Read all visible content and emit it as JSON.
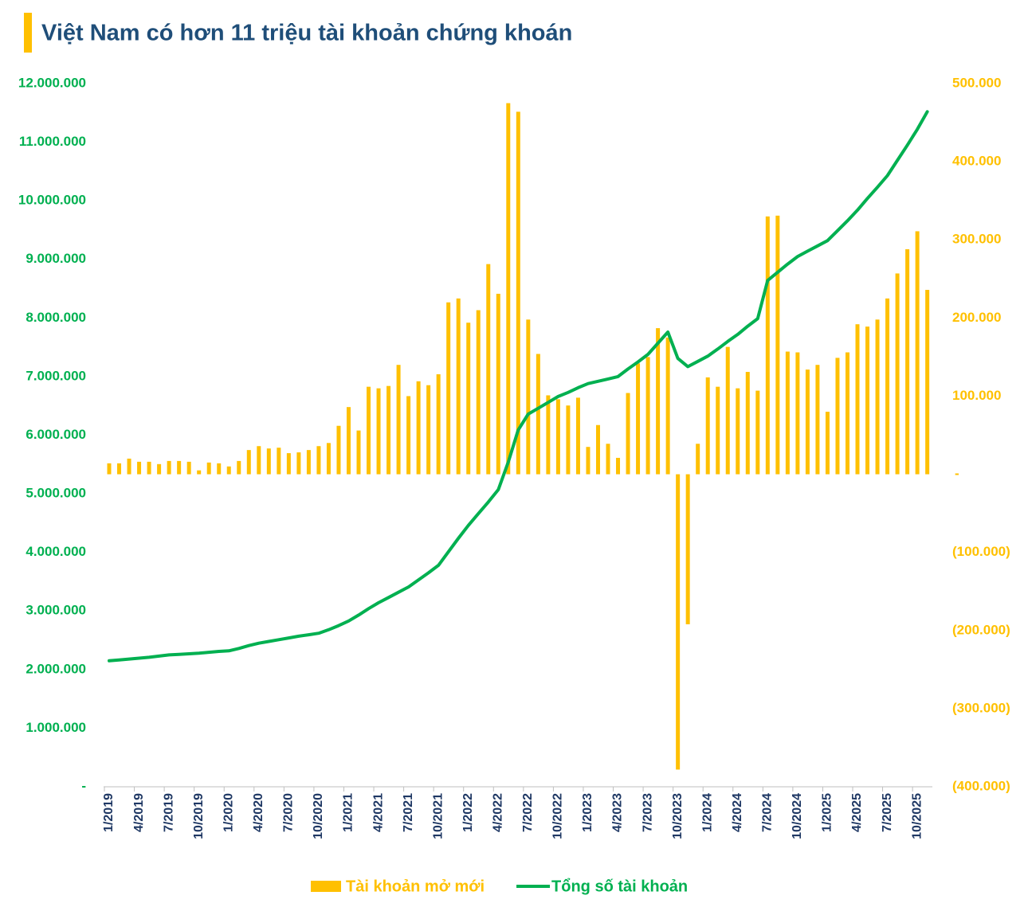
{
  "chart_data": {
    "type": "bar-line",
    "title": "Việt Nam có hơn 11 triệu tài khoản chứng khoán",
    "categories": [
      "1/2019",
      null,
      null,
      "4/2019",
      null,
      null,
      "7/2019",
      null,
      null,
      "10/2019",
      null,
      null,
      "1/2020",
      null,
      null,
      "4/2020",
      null,
      null,
      "7/2020",
      null,
      null,
      "10/2020",
      null,
      null,
      "1/2021",
      null,
      null,
      "4/2021",
      null,
      null,
      "7/2021",
      null,
      null,
      "10/2021",
      null,
      null,
      "1/2022",
      null,
      null,
      "4/2022",
      null,
      null,
      "7/2022",
      null,
      null,
      "10/2022",
      null,
      null,
      "1/2023",
      null,
      null,
      "4/2023",
      null,
      null,
      "7/2023",
      null,
      null,
      "10/2023",
      null,
      null,
      "1/2024",
      null,
      null,
      "4/2024",
      null,
      null,
      "7/2024",
      null,
      null,
      "10/2024",
      null,
      null,
      "1/2025",
      null,
      null,
      "4/2025",
      null,
      null,
      "7/2025",
      null,
      null,
      "10/2025",
      null
    ],
    "series": [
      {
        "name": "Tài khoản mở mới",
        "type": "bar",
        "axis": "y2",
        "color": "#ffc000",
        "values": [
          14000,
          14000,
          20000,
          16000,
          16000,
          13000,
          17000,
          17000,
          16000,
          5000,
          15000,
          14000,
          10000,
          17000,
          31000,
          36000,
          33000,
          34000,
          27000,
          28000,
          31000,
          36000,
          40000,
          62000,
          86000,
          56000,
          112000,
          110000,
          113000,
          140000,
          100000,
          119000,
          114000,
          128000,
          220000,
          225000,
          194000,
          210000,
          269000,
          231000,
          475000,
          464000,
          198000,
          154000,
          101000,
          96000,
          88000,
          98000,
          35000,
          63000,
          39000,
          21000,
          104000,
          142000,
          150000,
          187000,
          175000,
          -378000,
          -192000,
          39000,
          124000,
          112000,
          163000,
          110000,
          131000,
          107000,
          330000,
          331000,
          157000,
          156000,
          134000,
          140000,
          80000,
          149000,
          156000,
          192000,
          189000,
          198000,
          225000,
          257000,
          288000,
          311000,
          236000
        ]
      },
      {
        "name": "Tổng số tài khoản",
        "type": "line",
        "axis": "y",
        "color": "#00b050",
        "values": [
          2150000,
          2165000,
          2180000,
          2195000,
          2210000,
          2230000,
          2250000,
          2260000,
          2270000,
          2280000,
          2295000,
          2310000,
          2320000,
          2360000,
          2410000,
          2450000,
          2480000,
          2510000,
          2540000,
          2570000,
          2595000,
          2620000,
          2680000,
          2750000,
          2830000,
          2930000,
          3040000,
          3140000,
          3230000,
          3320000,
          3410000,
          3530000,
          3650000,
          3780000,
          4010000,
          4240000,
          4460000,
          4660000,
          4860000,
          5070000,
          5540000,
          6090000,
          6360000,
          6460000,
          6560000,
          6660000,
          6730000,
          6810000,
          6880000,
          6920000,
          6960000,
          7000000,
          7130000,
          7250000,
          7380000,
          7570000,
          7760000,
          7310000,
          7170000,
          7260000,
          7350000,
          7470000,
          7600000,
          7720000,
          7860000,
          7990000,
          8640000,
          8780000,
          8920000,
          9050000,
          9140000,
          9230000,
          9320000,
          9490000,
          9660000,
          9840000,
          10040000,
          10230000,
          10430000,
          10690000,
          10950000,
          11220000,
          11520000
        ]
      }
    ],
    "ylim": [
      0,
      12000000
    ],
    "yticks": [
      {
        "value": 0,
        "label": "-"
      },
      {
        "value": 1000000,
        "label": "1.000.000"
      },
      {
        "value": 2000000,
        "label": "2.000.000"
      },
      {
        "value": 3000000,
        "label": "3.000.000"
      },
      {
        "value": 4000000,
        "label": "4.000.000"
      },
      {
        "value": 5000000,
        "label": "5.000.000"
      },
      {
        "value": 6000000,
        "label": "6.000.000"
      },
      {
        "value": 7000000,
        "label": "7.000.000"
      },
      {
        "value": 8000000,
        "label": "8.000.000"
      },
      {
        "value": 9000000,
        "label": "9.000.000"
      },
      {
        "value": 10000000,
        "label": "10.000.000"
      },
      {
        "value": 11000000,
        "label": "11.000.000"
      },
      {
        "value": 12000000,
        "label": "12.000.000"
      }
    ],
    "y2lim": [
      -400000,
      500000
    ],
    "y2ticks": [
      {
        "value": -400000,
        "label": "(400.000)"
      },
      {
        "value": -300000,
        "label": "(300.000)"
      },
      {
        "value": -200000,
        "label": "(200.000)"
      },
      {
        "value": -100000,
        "label": "(100.000)"
      },
      {
        "value": 0,
        "label": "-"
      },
      {
        "value": 100000,
        "label": "100.000"
      },
      {
        "value": 200000,
        "label": "200.000"
      },
      {
        "value": 300000,
        "label": "300.000"
      },
      {
        "value": 400000,
        "label": "400.000"
      },
      {
        "value": 500000,
        "label": "500.000"
      }
    ]
  }
}
